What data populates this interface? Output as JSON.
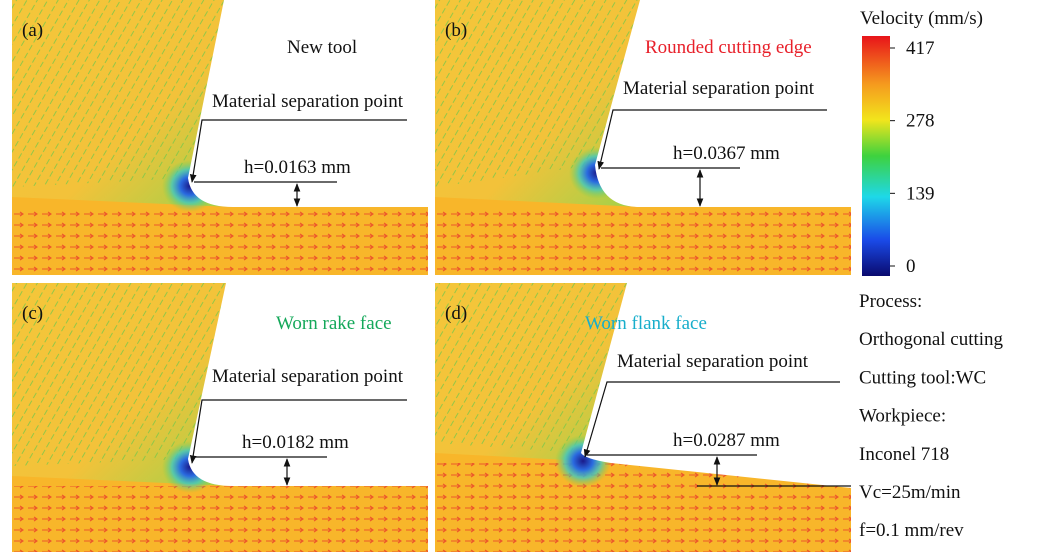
{
  "panels": [
    {
      "label": "(a)",
      "title": "New tool",
      "annotation": "Material separation point",
      "height_label": "h=0.0163 mm"
    },
    {
      "label": "(b)",
      "title": "Rounded cutting edge",
      "annotation": "Material separation point",
      "height_label": "h=0.0367 mm"
    },
    {
      "label": "(c)",
      "title": "Worn rake face",
      "annotation": "Material separation point",
      "height_label": "h=0.0182 mm"
    },
    {
      "label": "(d)",
      "title": "Worn flank face",
      "annotation": "Material separation point",
      "height_label": "h=0.0287 mm"
    }
  ],
  "colorbar": {
    "title": "Velocity (mm/s)",
    "ticks": [
      417,
      278,
      139,
      0
    ]
  },
  "process": [
    "Process:",
    "Orthogonal cutting",
    "Cutting tool:WC",
    "Workpiece:",
    "Inconel 718",
    "Vc=25m/min",
    "f=0.1 mm/rev"
  ]
}
